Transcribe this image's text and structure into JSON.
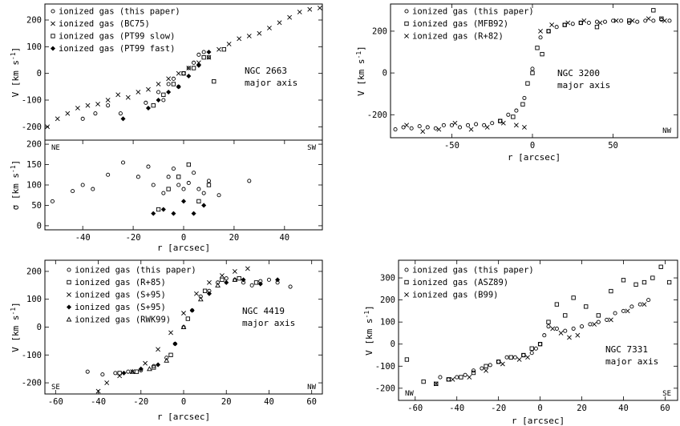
{
  "chart_data": [
    {
      "id": "ngc2663-velocity",
      "type": "scatter",
      "xlabel": "",
      "ylabel": "V [km s",
      "ylabel_sup": "-1",
      "ylabel_end": "]",
      "xlim": [
        -55,
        55
      ],
      "ylim": [
        -250,
        260
      ],
      "xticks": [],
      "yticks": [
        -200,
        -100,
        0,
        100,
        200
      ],
      "annotation": [
        "NGC 2663",
        "major axis"
      ],
      "corner_labels": [],
      "series": [
        {
          "name": "ionized gas (this paper)",
          "marker": "circle",
          "x": [
            -40,
            -35,
            -30,
            -25,
            -15,
            -10,
            -8,
            -6,
            -4,
            -2,
            0,
            2,
            4,
            6,
            8,
            10
          ],
          "y": [
            -170,
            -150,
            -120,
            -150,
            -110,
            -70,
            -100,
            -40,
            -20,
            -50,
            0,
            20,
            40,
            70,
            80,
            60
          ]
        },
        {
          "name": "ionized gas (BC75)",
          "marker": "cross",
          "x": [
            -54,
            -50,
            -46,
            -42,
            -38,
            -34,
            -30,
            -26,
            -22,
            -18,
            -14,
            -10,
            -6,
            -2,
            2,
            6,
            10,
            14,
            18,
            22,
            26,
            30,
            34,
            38,
            42,
            46,
            50,
            54
          ],
          "y": [
            -200,
            -170,
            -150,
            -130,
            -120,
            -115,
            -100,
            -80,
            -90,
            -70,
            -60,
            -40,
            -20,
            0,
            20,
            40,
            60,
            90,
            110,
            130,
            140,
            150,
            170,
            190,
            210,
            230,
            240,
            245
          ]
        },
        {
          "name": "ionized gas (PT99 slow)",
          "marker": "square",
          "x": [
            -12,
            -8,
            -4,
            0,
            4,
            8,
            12,
            16
          ],
          "y": [
            -120,
            -80,
            -40,
            0,
            20,
            60,
            -30,
            90
          ]
        },
        {
          "name": "ionized gas (PT99 fast)",
          "marker": "diamond",
          "x": [
            -24,
            -14,
            -10,
            -6,
            -2,
            2,
            6,
            10
          ],
          "y": [
            -170,
            -130,
            -100,
            -70,
            -50,
            -10,
            30,
            80
          ]
        }
      ]
    },
    {
      "id": "ngc2663-dispersion",
      "type": "scatter",
      "xlabel": "r [arcsec]",
      "ylabel": "σ [km s",
      "ylabel_sup": "-1",
      "ylabel_end": "]",
      "xlim": [
        -55,
        55
      ],
      "ylim": [
        -10,
        210
      ],
      "xticks": [
        -40,
        -20,
        0,
        20,
        40
      ],
      "yticks": [
        0,
        50,
        100,
        150,
        200
      ],
      "annotation": [],
      "corner_labels": [
        {
          "text": "NE",
          "pos": "top-left"
        },
        {
          "text": "SW",
          "pos": "top-right"
        }
      ],
      "series": [
        {
          "name": "ionized gas (this paper)",
          "marker": "circle",
          "x": [
            -52,
            -44,
            -40,
            -36,
            -30,
            -24,
            -18,
            -14,
            -12,
            -8,
            -6,
            -4,
            -2,
            0,
            2,
            4,
            6,
            8,
            10,
            14,
            26
          ],
          "y": [
            60,
            85,
            100,
            90,
            125,
            155,
            120,
            145,
            100,
            80,
            120,
            140,
            100,
            90,
            105,
            130,
            90,
            80,
            110,
            75,
            110
          ]
        },
        {
          "name": "ionized gas (PT99 slow)",
          "marker": "square",
          "x": [
            -10,
            -6,
            -2,
            2,
            6,
            10
          ],
          "y": [
            40,
            90,
            120,
            150,
            60,
            100
          ]
        },
        {
          "name": "ionized gas (PT99 fast)",
          "marker": "diamond",
          "x": [
            -12,
            -8,
            -4,
            0,
            4,
            8
          ],
          "y": [
            30,
            40,
            30,
            60,
            30,
            50
          ]
        }
      ]
    },
    {
      "id": "ngc3200",
      "type": "scatter",
      "xlabel": "r [arcsec]",
      "ylabel": "V [km s",
      "ylabel_sup": "-1",
      "ylabel_end": "]",
      "xlim": [
        -88,
        90
      ],
      "ylim": [
        -310,
        330
      ],
      "xticks": [
        -50,
        0,
        50
      ],
      "yticks": [
        -200,
        0,
        200
      ],
      "annotation": [
        "NGC 3200",
        "major axis"
      ],
      "corner_labels": [
        {
          "text": "NW",
          "pos": "bottom-right"
        }
      ],
      "series": [
        {
          "name": "ionized gas (this paper)",
          "marker": "circle",
          "x": [
            -85,
            -80,
            -75,
            -70,
            -65,
            -60,
            -55,
            -50,
            -45,
            -40,
            -35,
            -30,
            -25,
            -20,
            -15,
            -10,
            -5,
            0,
            5,
            10,
            15,
            20,
            25,
            30,
            35,
            40,
            45,
            50,
            55,
            60,
            65,
            70,
            75,
            80,
            85
          ],
          "y": [
            -270,
            -260,
            -265,
            -255,
            -260,
            -265,
            -250,
            -250,
            -260,
            -250,
            -245,
            -250,
            -240,
            -230,
            -200,
            -180,
            -120,
            20,
            170,
            200,
            220,
            230,
            235,
            240,
            240,
            245,
            245,
            250,
            250,
            240,
            245,
            250,
            250,
            255,
            250
          ]
        },
        {
          "name": "ionized gas (MFB92)",
          "marker": "square",
          "x": [
            -20,
            -12,
            -6,
            -3,
            0,
            3,
            6,
            10,
            20,
            30,
            40,
            60,
            75,
            80
          ],
          "y": [
            -230,
            -210,
            -150,
            -50,
            0,
            120,
            90,
            200,
            230,
            240,
            220,
            250,
            300,
            260
          ]
        },
        {
          "name": "ionized gas (R+82)",
          "marker": "cross",
          "x": [
            -78,
            -68,
            -58,
            -48,
            -38,
            -28,
            -18,
            -10,
            -5,
            5,
            12,
            22,
            32,
            42,
            52,
            62,
            72,
            82
          ],
          "y": [
            -250,
            -280,
            -270,
            -240,
            -270,
            -260,
            -240,
            -250,
            -260,
            200,
            230,
            240,
            250,
            240,
            250,
            250,
            260,
            250
          ]
        }
      ]
    },
    {
      "id": "ngc4419",
      "type": "scatter",
      "xlabel": "r [arcsec]",
      "ylabel": "V [km s",
      "ylabel_sup": "-1",
      "ylabel_end": "]",
      "xlim": [
        -65,
        65
      ],
      "ylim": [
        -240,
        240
      ],
      "xticks": [
        -60,
        -40,
        -20,
        0,
        20,
        40,
        60
      ],
      "yticks": [
        -200,
        -100,
        0,
        100,
        200
      ],
      "annotation": [
        "NGC 4419",
        "major axis"
      ],
      "corner_labels": [
        {
          "text": "SE",
          "pos": "bottom-left"
        },
        {
          "text": "NW",
          "pos": "bottom-right"
        }
      ],
      "series": [
        {
          "name": "ionized gas (this paper)",
          "marker": "circle",
          "x": [
            -45,
            -38,
            -32,
            -26,
            -20,
            -14,
            -8,
            -4,
            0,
            4,
            8,
            12,
            16,
            20,
            24,
            28,
            32,
            36,
            40,
            44,
            50
          ],
          "y": [
            -160,
            -170,
            -165,
            -160,
            -155,
            -140,
            -110,
            -60,
            0,
            60,
            110,
            130,
            160,
            175,
            170,
            160,
            150,
            165,
            170,
            160,
            145
          ]
        },
        {
          "name": "ionized gas (R+85)",
          "marker": "square",
          "x": [
            -30,
            -22,
            -14,
            -6,
            2,
            10,
            18,
            26,
            34
          ],
          "y": [
            -165,
            -160,
            -145,
            -100,
            30,
            130,
            170,
            175,
            160
          ]
        },
        {
          "name": "ionized gas (S+95)",
          "marker": "cross",
          "x": [
            -40,
            -36,
            -30,
            -24,
            -18,
            -12,
            -6,
            0,
            6,
            12,
            18,
            24,
            30
          ],
          "y": [
            -230,
            -200,
            -175,
            -160,
            -130,
            -80,
            -20,
            50,
            120,
            160,
            185,
            200,
            210
          ]
        },
        {
          "name": "ionized gas (S+95)",
          "marker": "diamond",
          "x": [
            -28,
            -20,
            -12,
            -4,
            4,
            12,
            20,
            28,
            36,
            44
          ],
          "y": [
            -165,
            -150,
            -135,
            -60,
            60,
            120,
            160,
            170,
            155,
            170
          ]
        },
        {
          "name": "ionized gas (RWK99)",
          "marker": "triangle",
          "x": [
            -24,
            -16,
            -8,
            0,
            8,
            16,
            24
          ],
          "y": [
            -160,
            -150,
            -120,
            0,
            100,
            150,
            170
          ]
        }
      ]
    },
    {
      "id": "ngc7331",
      "type": "scatter",
      "xlabel": "r [arcsec]",
      "ylabel": "V [km s",
      "ylabel_sup": "-1",
      "ylabel_end": "]",
      "xlim": [
        -68,
        66
      ],
      "ylim": [
        -255,
        380
      ],
      "xticks": [
        -60,
        -40,
        -20,
        0,
        20,
        40,
        60
      ],
      "yticks": [
        -200,
        -100,
        0,
        100,
        200,
        300
      ],
      "annotation": [
        "NGC 7331",
        "major axis"
      ],
      "corner_labels": [
        {
          "text": "NW",
          "pos": "bottom-left"
        },
        {
          "text": "SE",
          "pos": "bottom-right"
        }
      ],
      "series": [
        {
          "name": "ionized gas (this paper)",
          "marker": "circle",
          "x": [
            -48,
            -44,
            -40,
            -36,
            -32,
            -28,
            -24,
            -20,
            -16,
            -12,
            -8,
            -4,
            -2,
            0,
            2,
            4,
            8,
            12,
            16,
            20,
            24,
            28,
            32,
            36,
            40,
            44,
            48,
            52
          ],
          "y": [
            -150,
            -160,
            -150,
            -140,
            -120,
            -110,
            -95,
            -80,
            -60,
            -60,
            -50,
            -40,
            -20,
            0,
            40,
            80,
            70,
            60,
            70,
            80,
            90,
            100,
            110,
            140,
            150,
            170,
            180,
            200
          ]
        },
        {
          "name": "ionized gas (ASZ89)",
          "marker": "square",
          "x": [
            -64,
            -56,
            -50,
            -44,
            -38,
            -32,
            -26,
            -20,
            -14,
            -8,
            -4,
            0,
            4,
            8,
            12,
            16,
            22,
            28,
            34,
            40,
            46,
            50,
            54,
            58,
            62
          ],
          "y": [
            -70,
            -170,
            -180,
            -160,
            -150,
            -130,
            -100,
            -80,
            -60,
            -50,
            -20,
            0,
            100,
            180,
            130,
            210,
            170,
            130,
            240,
            290,
            270,
            280,
            300,
            350,
            280
          ]
        },
        {
          "name": "ionized gas (B99)",
          "marker": "cross",
          "x": [
            -50,
            -42,
            -34,
            -26,
            -18,
            -10,
            -6,
            6,
            10,
            14,
            18,
            26,
            34,
            42,
            50
          ],
          "y": [
            -180,
            -160,
            -150,
            -120,
            -90,
            -70,
            -60,
            70,
            50,
            30,
            40,
            90,
            110,
            150,
            180
          ]
        }
      ]
    }
  ]
}
